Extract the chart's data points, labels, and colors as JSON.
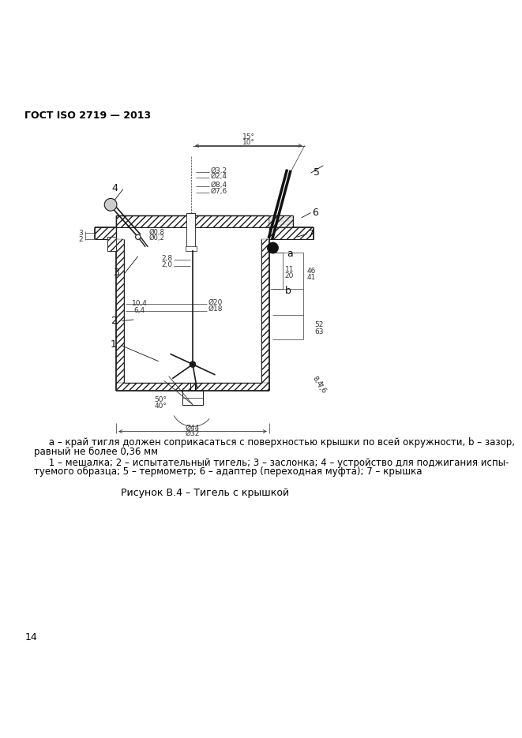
{
  "header": "ГОСТ ISO 2719 — 2013",
  "page_number": "14",
  "caption_title": "Рисунок В.4 – Тигель с крышкой",
  "note_line1": "     а – край тигля должен соприкасаться с поверхностью крышки по всей окружности, b – зазор,",
  "note_line2": "равный не более 0,36 мм",
  "note_line3": "     1 – мешалка; 2 – испытательный тигель; 3 – заслонка; 4 – устройство для поджигания испы-",
  "note_line4": "туемого образца; 5 – термометр; 6 – адаптер (переходная муфта); 7 – крышка",
  "bg_color": "#ffffff",
  "text_color": "#000000",
  "line_color": "#1a1a1a",
  "header_fontsize": 9,
  "body_fontsize": 8.5,
  "caption_fontsize": 9,
  "page_num_fontsize": 9
}
